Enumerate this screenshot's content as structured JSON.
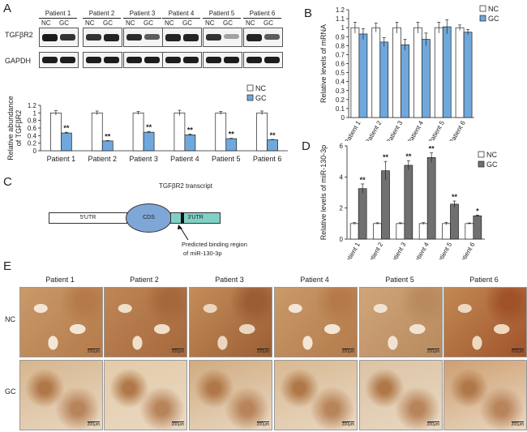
{
  "panels": {
    "A": "A",
    "B": "B",
    "C": "C",
    "D": "D",
    "E": "E"
  },
  "blot": {
    "patients": [
      "Patient 1",
      "Patient 2",
      "Patient 3",
      "Patient 4",
      "Patient 5",
      "Patient 6"
    ],
    "lane_labels": [
      "NC",
      "GC"
    ],
    "rows": [
      "TGFβR2",
      "GAPDH"
    ]
  },
  "colors": {
    "nc": "#ffffff",
    "gc_blue": "#6fa8dc",
    "gc_gray": "#707070",
    "axis": "#222222"
  },
  "chart_data": [
    {
      "id": "A",
      "type": "bar",
      "categories": [
        "Patient 1",
        "Patient 2",
        "Patient 3",
        "Patient 4",
        "Patient 5",
        "Patient 6"
      ],
      "series": [
        {
          "name": "NC",
          "values": [
            1,
            1,
            1,
            1,
            1,
            1
          ],
          "errors": [
            0.06,
            0.05,
            0.04,
            0.07,
            0.04,
            0.05
          ]
        },
        {
          "name": "GC",
          "values": [
            0.47,
            0.26,
            0.49,
            0.42,
            0.32,
            0.29
          ],
          "errors": [
            0.02,
            0.01,
            0.02,
            0.02,
            0.01,
            0.01
          ]
        }
      ],
      "significance": [
        "**",
        "**",
        "**",
        "**",
        "**",
        "**"
      ],
      "ylabel": "Relative abundance of TGFβR2",
      "yticks": [
        "0",
        "0.2",
        "0.4",
        "0.6",
        "0.8",
        "1",
        "1.2"
      ],
      "ylim": [
        0,
        1.2
      ],
      "legend_position": "right"
    },
    {
      "id": "B",
      "type": "bar",
      "categories": [
        "Patient 1",
        "Patient 2",
        "Patient 3",
        "Patient 4",
        "Patient 5",
        "Patient 6"
      ],
      "series": [
        {
          "name": "NC",
          "values": [
            1.0,
            1.0,
            1.0,
            1.0,
            1.0,
            1.0
          ],
          "errors": [
            0.06,
            0.05,
            0.06,
            0.06,
            0.06,
            0.03
          ]
        },
        {
          "name": "GC",
          "values": [
            0.93,
            0.84,
            0.81,
            0.87,
            1.01,
            0.95
          ],
          "errors": [
            0.06,
            0.05,
            0.06,
            0.07,
            0.08,
            0.03
          ]
        }
      ],
      "ylabel": "Relative levels of mRNA",
      "yticks": [
        "0",
        "0.1",
        "0.2",
        "0.3",
        "0.4",
        "0.5",
        "0.6",
        "0.7",
        "0.8",
        "0.9",
        "1",
        "1.1",
        "1.2"
      ],
      "ylim": [
        0,
        1.2
      ],
      "legend_position": "right"
    },
    {
      "id": "D",
      "type": "bar",
      "categories": [
        "Patient 1",
        "Patient 2",
        "Patient 3",
        "Patient 4",
        "Patient 5",
        "Patient 6"
      ],
      "series": [
        {
          "name": "NC",
          "values": [
            1.0,
            1.0,
            1.0,
            1.0,
            1.0,
            1.0
          ],
          "errors": [
            0.06,
            0.05,
            0.05,
            0.06,
            0.08,
            0.04
          ]
        },
        {
          "name": "GC",
          "values": [
            3.25,
            4.4,
            4.75,
            5.25,
            2.25,
            1.5
          ],
          "errors": [
            0.3,
            0.6,
            0.3,
            0.3,
            0.2,
            0.05
          ]
        }
      ],
      "significance": [
        "**",
        "**",
        "**",
        "**",
        "**",
        "*"
      ],
      "ylabel": "Relative levels of miR-130-3p",
      "yticks": [
        "0",
        "2",
        "4",
        "6"
      ],
      "ylim": [
        0,
        6
      ],
      "legend_position": "top-right"
    }
  ],
  "diagram": {
    "title": "TGFβR2  transcript",
    "utr5": "5'UTR",
    "cds": "CDS",
    "utr3": "3'UTR",
    "caption_line1": "Predicted binding region",
    "caption_line2": "of miR-130-3p"
  },
  "ihc": {
    "columns": [
      "Patient 1",
      "Patient 2",
      "Patient 3",
      "Patient 4",
      "Patient 5",
      "Patient 6"
    ],
    "rows": [
      "NC",
      "GC"
    ],
    "scale": "200μm"
  }
}
